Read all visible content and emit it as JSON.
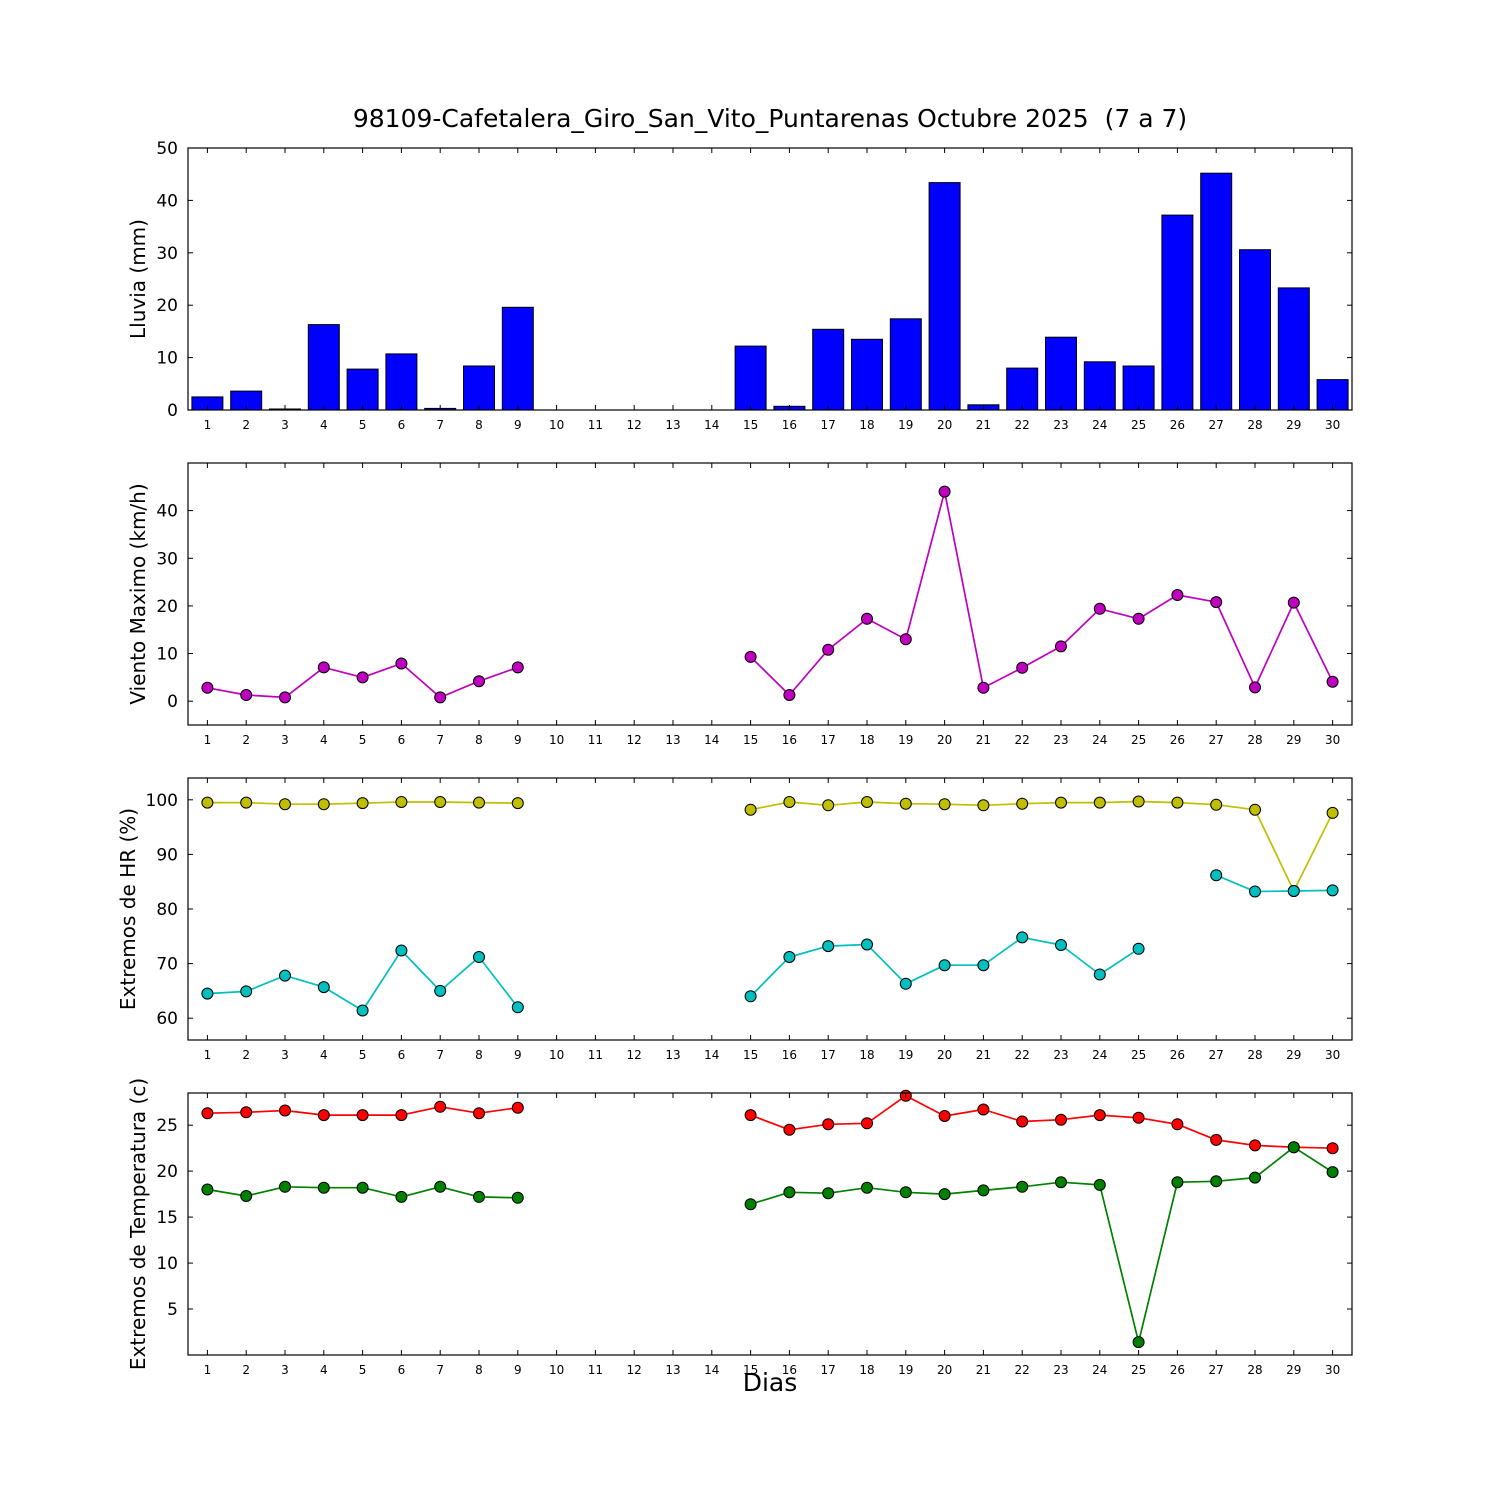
{
  "title": "98109-Cafetalera_Giro_San_Vito_Puntarenas Octubre 2025  (7 a 7)",
  "xlabel": "Dias",
  "days": [
    1,
    2,
    3,
    4,
    5,
    6,
    7,
    8,
    9,
    10,
    11,
    12,
    13,
    14,
    15,
    16,
    17,
    18,
    19,
    20,
    21,
    22,
    23,
    24,
    25,
    26,
    27,
    28,
    29,
    30
  ],
  "chart_data": [
    {
      "type": "bar",
      "ylabel": "Lluvia (mm)",
      "color": "#0000ff",
      "ylim": [
        0,
        50
      ],
      "yticks": [
        0,
        10,
        20,
        30,
        40,
        50
      ],
      "values": [
        2.5,
        3.6,
        0.2,
        16.3,
        7.8,
        10.7,
        0.3,
        8.4,
        19.6,
        0,
        0,
        0,
        0,
        0,
        12.2,
        0.7,
        15.4,
        13.5,
        17.4,
        43.4,
        1.0,
        8.0,
        13.9,
        9.2,
        8.4,
        37.2,
        45.2,
        30.6,
        23.3,
        5.8
      ]
    },
    {
      "type": "line",
      "ylabel": "Viento Maximo (km/h)",
      "ylim": [
        -5,
        50
      ],
      "yticks": [
        0,
        10,
        20,
        30,
        40
      ],
      "series": [
        {
          "name": "viento-maximo",
          "color": "#bf00bf",
          "values": [
            2.8,
            1.3,
            0.8,
            7.1,
            5.0,
            7.9,
            0.8,
            4.2,
            7.1,
            null,
            null,
            null,
            null,
            null,
            9.3,
            1.3,
            10.8,
            17.3,
            13.0,
            44.0,
            2.8,
            7.0,
            11.5,
            19.4,
            17.3,
            22.3,
            20.8,
            2.9,
            20.7,
            4.1
          ]
        }
      ]
    },
    {
      "type": "line",
      "ylabel": "Extremos de HR (%)",
      "ylim": [
        56,
        104
      ],
      "yticks": [
        60,
        70,
        80,
        90,
        100
      ],
      "series": [
        {
          "name": "hr-max",
          "color": "#bfbf00",
          "values": [
            99.5,
            99.5,
            99.2,
            99.2,
            99.4,
            99.6,
            99.6,
            99.5,
            99.4,
            null,
            null,
            null,
            null,
            null,
            98.2,
            99.6,
            99.0,
            99.6,
            99.3,
            99.2,
            99.0,
            99.3,
            99.5,
            99.5,
            99.7,
            99.5,
            99.1,
            98.2,
            83.3,
            97.6
          ]
        },
        {
          "name": "hr-min",
          "color": "#00bfbf",
          "values": [
            64.5,
            64.9,
            67.8,
            65.7,
            61.4,
            72.4,
            65.0,
            71.2,
            62.0,
            null,
            null,
            null,
            null,
            null,
            64.0,
            71.2,
            73.2,
            73.5,
            66.3,
            69.7,
            69.7,
            74.8,
            73.4,
            68.0,
            72.7,
            null,
            86.2,
            83.2,
            83.3,
            83.4
          ]
        }
      ]
    },
    {
      "type": "line",
      "ylabel": "Extremos de Temperatura (c)",
      "ylim": [
        0,
        28.5
      ],
      "yticks": [
        5,
        10,
        15,
        20,
        25
      ],
      "series": [
        {
          "name": "temp-max",
          "color": "#ff0000",
          "values": [
            26.3,
            26.4,
            26.6,
            26.1,
            26.1,
            26.1,
            27.0,
            26.3,
            26.9,
            null,
            null,
            null,
            null,
            null,
            26.1,
            24.5,
            25.1,
            25.2,
            28.2,
            26.0,
            26.7,
            25.4,
            25.6,
            26.1,
            25.8,
            25.1,
            23.4,
            22.8,
            22.6,
            22.5
          ]
        },
        {
          "name": "temp-min",
          "color": "#008000",
          "values": [
            18.0,
            17.3,
            18.3,
            18.2,
            18.2,
            17.2,
            18.3,
            17.2,
            17.1,
            null,
            null,
            null,
            null,
            null,
            16.4,
            17.7,
            17.6,
            18.2,
            17.7,
            17.5,
            17.9,
            18.3,
            18.8,
            18.5,
            1.4,
            18.8,
            18.9,
            19.3,
            22.6,
            19.9
          ]
        }
      ]
    }
  ]
}
